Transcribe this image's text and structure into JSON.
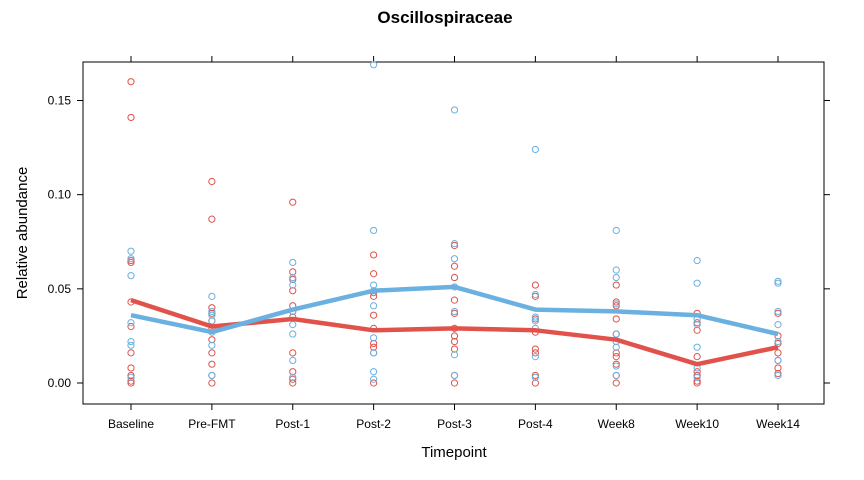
{
  "chart_data": {
    "type": "scatter",
    "title": "Oscillospiraceae",
    "xlabel": "Timepoint",
    "ylabel": "Relative abundance",
    "categories": [
      "Baseline",
      "Pre-FMT",
      "Post-1",
      "Post-2",
      "Post-3",
      "Post-4",
      "Week8",
      "Week10",
      "Week14"
    ],
    "yticks": [
      "0.00",
      "0.05",
      "0.10",
      "0.15"
    ],
    "ylim": [
      -0.012,
      0.171
    ],
    "grid": false,
    "legend": "none",
    "series": [
      {
        "color": "#e0524a",
        "trend": [
          0.044,
          0.03,
          0.034,
          0.028,
          0.029,
          0.028,
          0.023,
          0.01,
          0.019
        ],
        "points": [
          [
            0.16,
            0.141,
            0.065,
            0.064,
            0.043,
            0.03,
            0.016,
            0.008,
            0.004,
            0.001,
            0.0
          ],
          [
            0.107,
            0.087,
            0.04,
            0.037,
            0.033,
            0.029,
            0.023,
            0.016,
            0.01,
            0.004,
            0.0
          ],
          [
            0.096,
            0.059,
            0.055,
            0.049,
            0.041,
            0.038,
            0.035,
            0.016,
            0.006,
            0.002,
            0.0
          ],
          [
            0.068,
            0.058,
            0.048,
            0.046,
            0.036,
            0.029,
            0.021,
            0.019,
            0.016,
            0.0
          ],
          [
            0.073,
            0.062,
            0.056,
            0.044,
            0.037,
            0.029,
            0.025,
            0.022,
            0.018,
            0.004,
            0.0
          ],
          [
            0.052,
            0.046,
            0.034,
            0.027,
            0.018,
            0.016,
            0.004,
            0.0
          ],
          [
            0.052,
            0.043,
            0.041,
            0.034,
            0.026,
            0.016,
            0.014,
            0.01,
            0.004,
            0.0
          ],
          [
            0.037,
            0.032,
            0.028,
            0.014,
            0.006,
            0.004,
            0.001,
            0.0
          ],
          [
            0.037,
            0.025,
            0.021,
            0.016,
            0.012,
            0.008,
            0.005
          ]
        ]
      },
      {
        "color": "#6ab0e0",
        "trend": [
          0.036,
          0.027,
          0.039,
          0.049,
          0.051,
          0.039,
          0.038,
          0.036,
          0.026
        ],
        "points": [
          [
            0.07,
            0.066,
            0.057,
            0.032,
            0.022,
            0.02,
            0.003
          ],
          [
            0.046,
            0.038,
            0.036,
            0.033,
            0.027,
            0.02,
            0.004
          ],
          [
            0.064,
            0.056,
            0.052,
            0.038,
            0.031,
            0.026,
            0.012,
            0.003
          ],
          [
            0.169,
            0.081,
            0.052,
            0.049,
            0.041,
            0.024,
            0.016,
            0.006,
            0.002
          ],
          [
            0.145,
            0.074,
            0.066,
            0.051,
            0.038,
            0.015,
            0.004
          ],
          [
            0.124,
            0.047,
            0.035,
            0.033,
            0.029,
            0.014,
            0.003
          ],
          [
            0.081,
            0.06,
            0.056,
            0.042,
            0.026,
            0.022,
            0.019,
            0.009,
            0.004
          ],
          [
            0.065,
            0.053,
            0.034,
            0.031,
            0.019,
            0.008,
            0.003
          ],
          [
            0.054,
            0.053,
            0.038,
            0.031,
            0.022,
            0.012,
            0.004
          ]
        ]
      }
    ]
  }
}
